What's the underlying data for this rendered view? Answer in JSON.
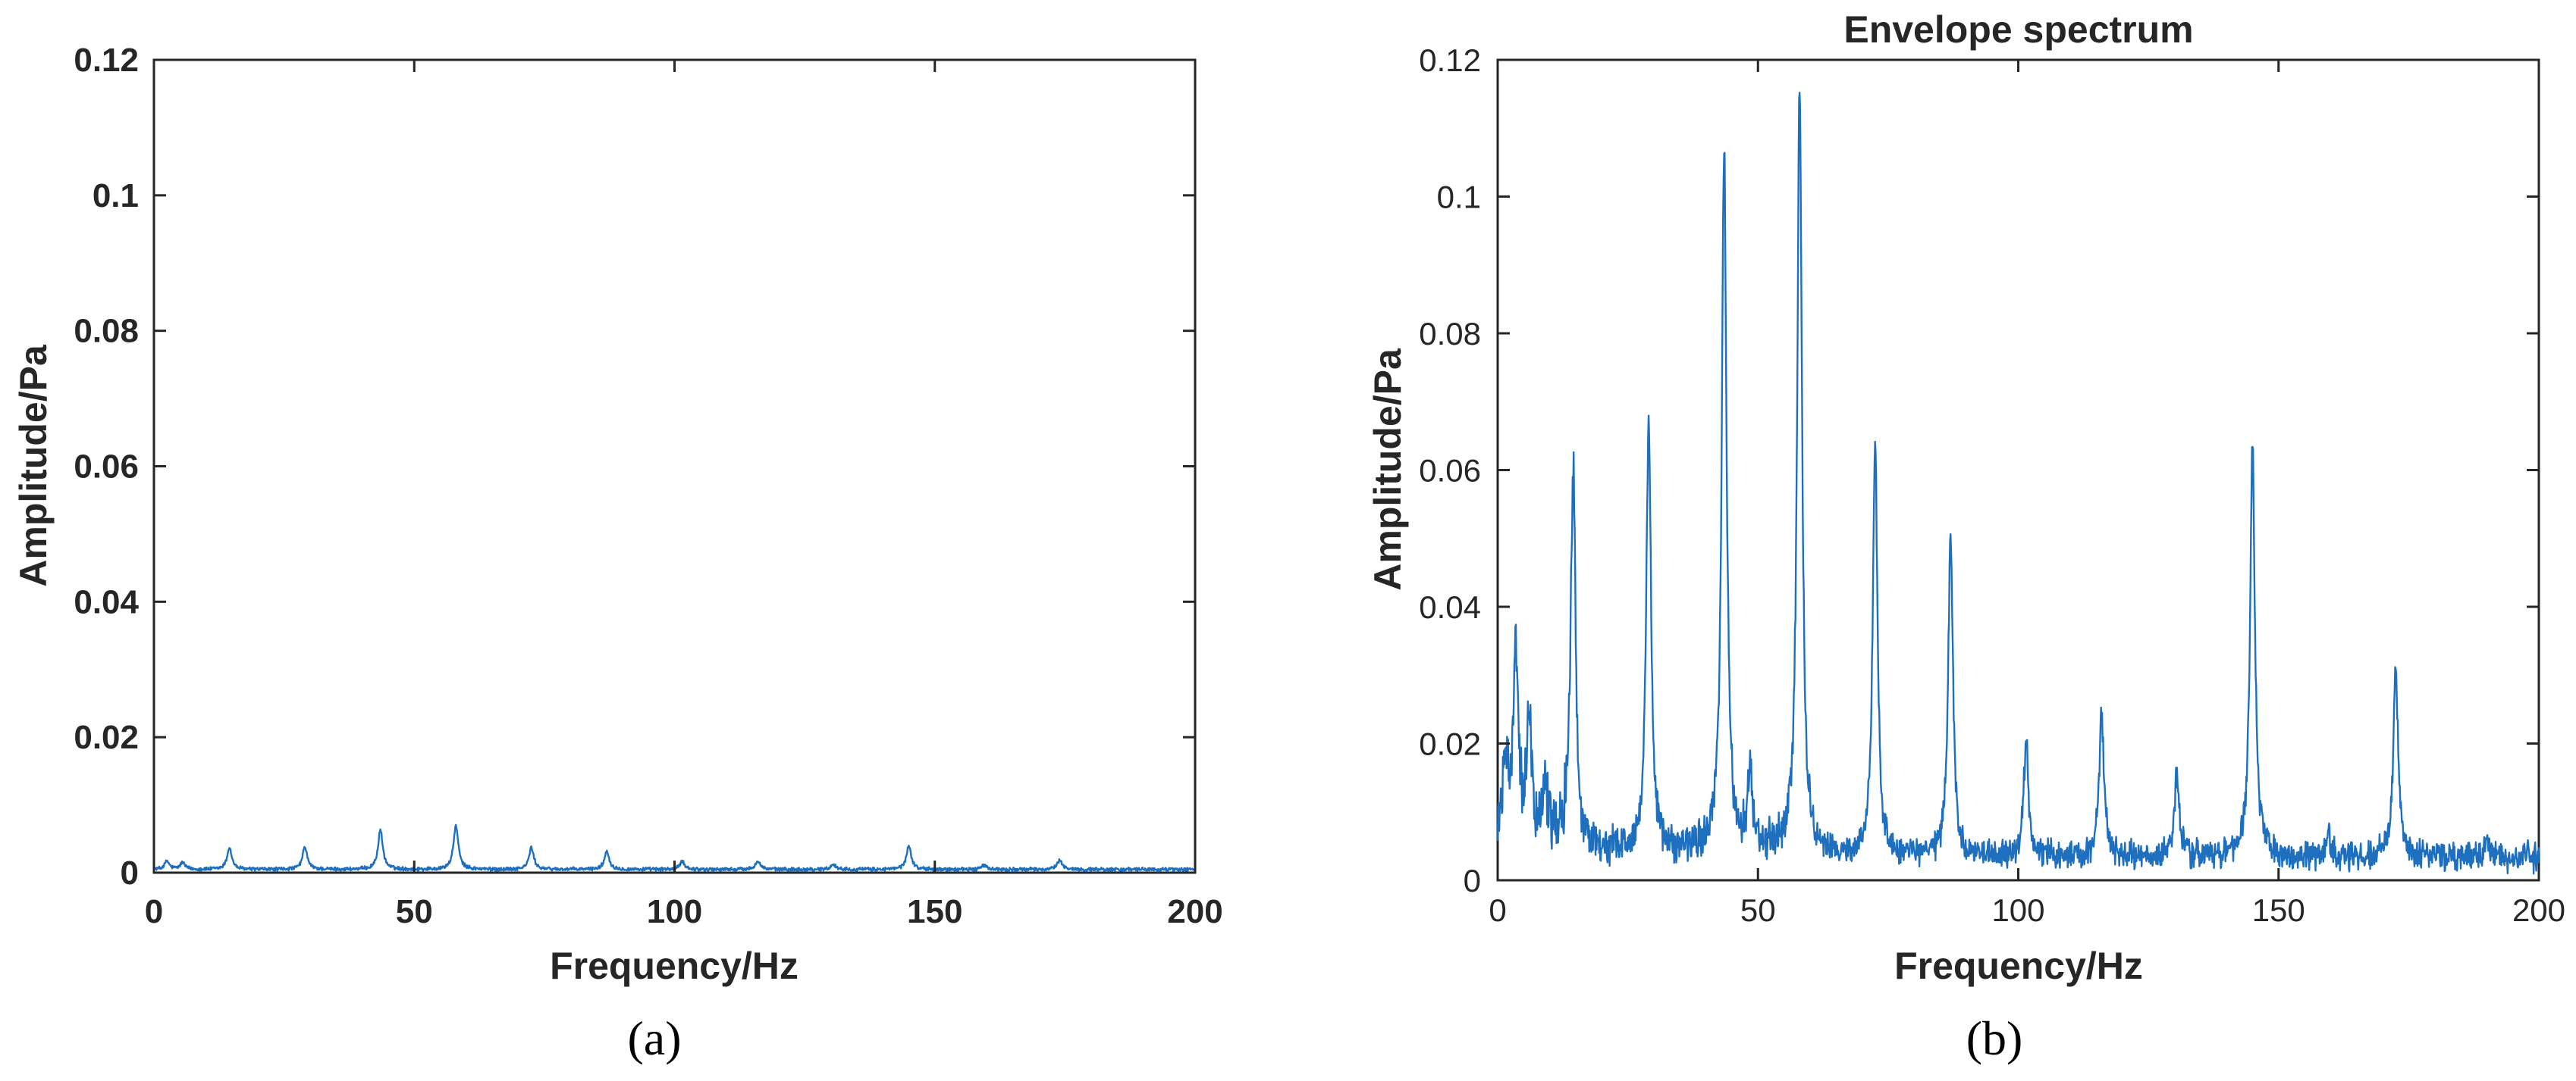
{
  "colors": {
    "series": "#1f6fbf",
    "axis": "#262626",
    "background": "#ffffff"
  },
  "chart_data": [
    {
      "panel": "(a)",
      "type": "line",
      "title": "",
      "xlabel": "Frequency/Hz",
      "ylabel": "Amplitude/Pa",
      "xlim": [
        0,
        200
      ],
      "ylim": [
        0,
        0.12
      ],
      "xticks": [
        0,
        50,
        100,
        150,
        200
      ],
      "yticks": [
        0,
        0.02,
        0.04,
        0.06,
        0.08,
        0.1,
        0.12
      ],
      "xtick_labels": [
        "0",
        "50",
        "100",
        "150",
        "200"
      ],
      "ytick_labels": [
        "0",
        "0.02",
        "0.04",
        "0.06",
        "0.08",
        "0.1",
        "0.12"
      ],
      "grid": false,
      "baseline": 0.0004,
      "peaks": [
        {
          "x": 2.5,
          "y": 0.0012
        },
        {
          "x": 5.5,
          "y": 0.001
        },
        {
          "x": 14.5,
          "y": 0.0032
        },
        {
          "x": 29,
          "y": 0.0033
        },
        {
          "x": 43.5,
          "y": 0.0058
        },
        {
          "x": 58,
          "y": 0.0065
        },
        {
          "x": 72.5,
          "y": 0.0032
        },
        {
          "x": 87,
          "y": 0.0027
        },
        {
          "x": 101.5,
          "y": 0.0012
        },
        {
          "x": 116,
          "y": 0.0013
        },
        {
          "x": 130.5,
          "y": 0.0008
        },
        {
          "x": 145,
          "y": 0.0035
        },
        {
          "x": 159.5,
          "y": 0.0006
        },
        {
          "x": 174,
          "y": 0.0014
        }
      ]
    },
    {
      "panel": "(b)",
      "type": "line",
      "title": "Envelope spectrum",
      "xlabel": "Frequency/Hz",
      "ylabel": "Amplitude/Pa",
      "xlim": [
        0,
        200
      ],
      "ylim": [
        0,
        0.12
      ],
      "xticks": [
        0,
        50,
        100,
        150,
        200
      ],
      "yticks": [
        0,
        0.02,
        0.04,
        0.06,
        0.08,
        0.1,
        0.12
      ],
      "xtick_labels": [
        "0",
        "50",
        "100",
        "150",
        "200"
      ],
      "ytick_labels": [
        "0",
        "0.02",
        "0.04",
        "0.06",
        "0.08",
        "0.1",
        "0.12"
      ],
      "grid": false,
      "baseline": 0.002,
      "peaks": [
        {
          "x": 1.5,
          "y": 0.012
        },
        {
          "x": 3.5,
          "y": 0.027
        },
        {
          "x": 6,
          "y": 0.018
        },
        {
          "x": 9,
          "y": 0.01
        },
        {
          "x": 14.5,
          "y": 0.055
        },
        {
          "x": 29,
          "y": 0.062
        },
        {
          "x": 43.5,
          "y": 0.103
        },
        {
          "x": 48.5,
          "y": 0.011
        },
        {
          "x": 58,
          "y": 0.112
        },
        {
          "x": 72.5,
          "y": 0.06
        },
        {
          "x": 87,
          "y": 0.047
        },
        {
          "x": 101.5,
          "y": 0.017
        },
        {
          "x": 116,
          "y": 0.021
        },
        {
          "x": 130.5,
          "y": 0.012
        },
        {
          "x": 145,
          "y": 0.061
        },
        {
          "x": 159.5,
          "y": 0.004
        },
        {
          "x": 172.5,
          "y": 0.028
        },
        {
          "x": 190,
          "y": 0.003
        }
      ]
    }
  ],
  "captions": [
    "(a)",
    "(b)"
  ]
}
